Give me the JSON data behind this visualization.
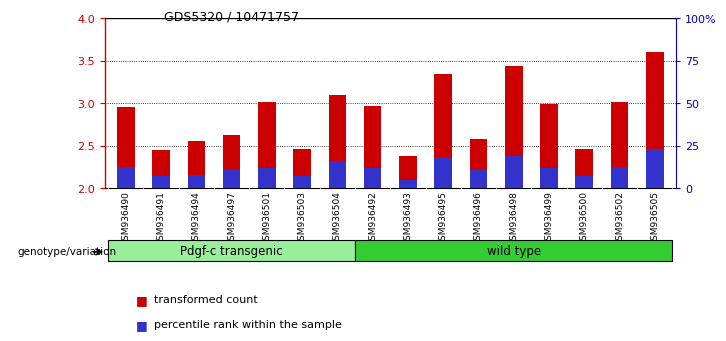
{
  "title": "GDS5320 / 10471757",
  "categories": [
    "GSM936490",
    "GSM936491",
    "GSM936494",
    "GSM936497",
    "GSM936501",
    "GSM936503",
    "GSM936504",
    "GSM936492",
    "GSM936493",
    "GSM936495",
    "GSM936496",
    "GSM936498",
    "GSM936499",
    "GSM936500",
    "GSM936502",
    "GSM936505"
  ],
  "red_values": [
    2.96,
    2.45,
    2.56,
    2.63,
    3.02,
    2.46,
    3.1,
    2.97,
    2.38,
    3.35,
    2.58,
    3.44,
    2.99,
    2.46,
    3.01,
    3.6
  ],
  "blue_values": [
    2.255,
    2.14,
    2.16,
    2.22,
    2.24,
    2.14,
    2.32,
    2.24,
    2.1,
    2.37,
    2.22,
    2.38,
    2.24,
    2.14,
    2.25,
    2.46
  ],
  "ylim": [
    2.0,
    4.0
  ],
  "yticks": [
    2.0,
    2.5,
    3.0,
    3.5,
    4.0
  ],
  "right_yticks": [
    0,
    25,
    50,
    75,
    100
  ],
  "right_ytick_labels": [
    "0",
    "25",
    "50",
    "75",
    "100%"
  ],
  "group1_label": "Pdgf-c transgenic",
  "group2_label": "wild type",
  "group1_count": 7,
  "group2_count": 9,
  "genotype_label": "genotype/variation",
  "legend_red": "transformed count",
  "legend_blue": "percentile rank within the sample",
  "bar_width": 0.5,
  "red_color": "#cc0000",
  "blue_color": "#3333cc",
  "group1_color": "#99ee99",
  "group2_color": "#33cc33",
  "tick_color_left": "#cc0000",
  "tick_color_right": "#0000cc",
  "bar_bottom": 2.0,
  "xticklabel_bg": "#dddddd",
  "plot_bg_color": "#ffffff"
}
